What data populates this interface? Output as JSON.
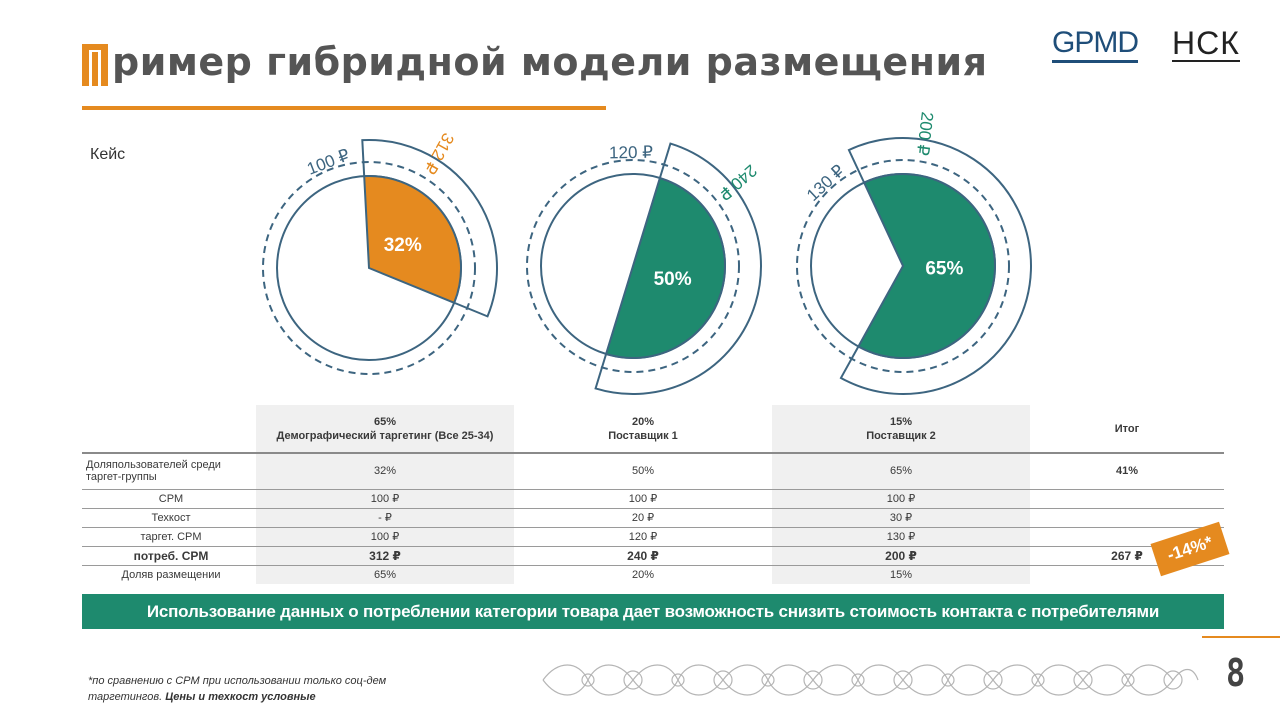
{
  "header": {
    "title": "ример гибридной модели размещения",
    "logo_left": "GPMD",
    "logo_right": "НСК"
  },
  "case_label": "Кейс",
  "colors": {
    "accent_orange": "#e58a1f",
    "accent_green": "#1e8a6e",
    "ring_blue": "#3d6580"
  },
  "charts": [
    {
      "name": "demographic",
      "share_pct": 32,
      "share_label": "32%",
      "inner_label": "100 ₽",
      "outer_label": "312 ₽",
      "fill": "#e58a1f"
    },
    {
      "name": "supplier-1",
      "share_pct": 50,
      "share_label": "50%",
      "inner_label": "120 ₽",
      "outer_label": "240 ₽",
      "fill": "#1e8a6e"
    },
    {
      "name": "supplier-2",
      "share_pct": 65,
      "share_label": "65%",
      "inner_label": "130 ₽",
      "outer_label": "200 ₽",
      "fill": "#1e8a6e"
    }
  ],
  "table": {
    "headers": [
      {
        "line1": "65%",
        "line2": "Демографический таргетинг (Все 25-34)"
      },
      {
        "line1": "20%",
        "line2": "Поставщик 1"
      },
      {
        "line1": "15%",
        "line2": "Поставщик 2"
      },
      {
        "line1": "Итог",
        "line2": ""
      }
    ],
    "rows": [
      {
        "label": "Доляпользователей среди таргет-группы",
        "cells": [
          "32%",
          "50%",
          "65%",
          "41%"
        ]
      },
      {
        "label": "CPM",
        "cells": [
          "100 ₽",
          "100 ₽",
          "100 ₽",
          ""
        ]
      },
      {
        "label": "Техкост",
        "cells": [
          "-  ₽",
          "20 ₽",
          "30 ₽",
          ""
        ]
      },
      {
        "label": "таргет. CPM",
        "cells": [
          "100 ₽",
          "120 ₽",
          "130 ₽",
          ""
        ]
      },
      {
        "label": "потреб. CPM",
        "cells": [
          "312 ₽",
          "240 ₽",
          "200 ₽",
          "267 ₽"
        ]
      },
      {
        "label": "Доляв размещении",
        "cells": [
          "65%",
          "20%",
          "15%",
          ""
        ]
      }
    ]
  },
  "badge": "-14%*",
  "banner": "Использование данных о потреблении категории товара дает возможность снизить стоимость контакта с потребителями",
  "footnote": {
    "text": "*по сравнению с CPM при использовании только соц-дем таргетингов.",
    "bold": "Цены и техкост условные"
  },
  "page_number": "8"
}
